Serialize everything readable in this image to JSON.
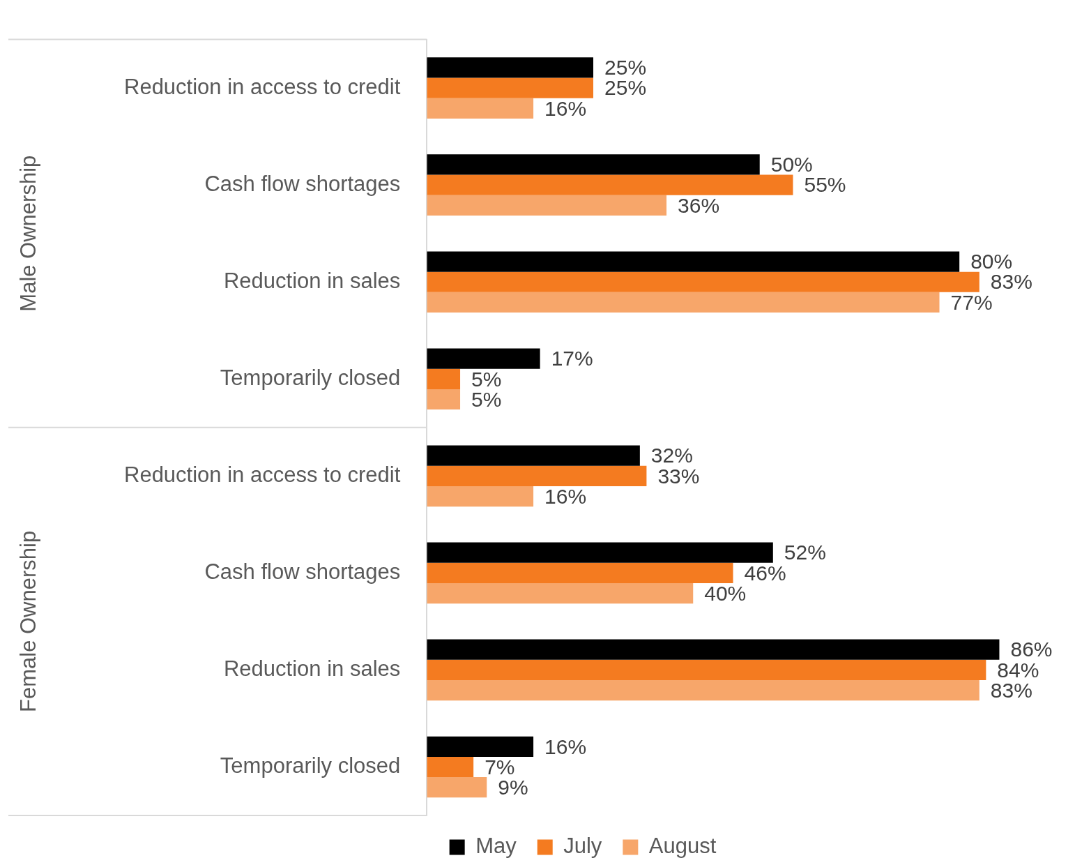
{
  "chart_data": {
    "type": "bar",
    "orientation": "horizontal",
    "categories": [
      "Reduction in access to credit",
      "Cash flow shortages",
      "Reduction in sales",
      "Temporarily closed",
      "Reduction in access to credit",
      "Cash flow shortages",
      "Reduction in sales",
      "Temporarily closed"
    ],
    "annotations": [
      "Male Ownership",
      "Female Ownership"
    ],
    "series": [
      {
        "name": "May",
        "color": "#000000",
        "values": [
          25,
          50,
          80,
          17,
          32,
          52,
          86,
          16
        ],
        "value_labels": [
          "25%",
          "50%",
          "80%",
          "17%",
          "32%",
          "52%",
          "86%",
          "16%"
        ]
      },
      {
        "name": "July",
        "color": "#f47b20",
        "values": [
          25,
          55,
          83,
          5,
          33,
          46,
          84,
          7
        ],
        "value_labels": [
          "25%",
          "55%",
          "83%",
          "5%",
          "33%",
          "46%",
          "84%",
          "7%"
        ]
      },
      {
        "name": "August",
        "color": "#f7a66a",
        "values": [
          16,
          36,
          77,
          5,
          16,
          40,
          83,
          9
        ],
        "value_labels": [
          "16%",
          "36%",
          "77%",
          "5%",
          "16%",
          "40%",
          "83%",
          "9%"
        ]
      }
    ],
    "legend": "bottom"
  }
}
